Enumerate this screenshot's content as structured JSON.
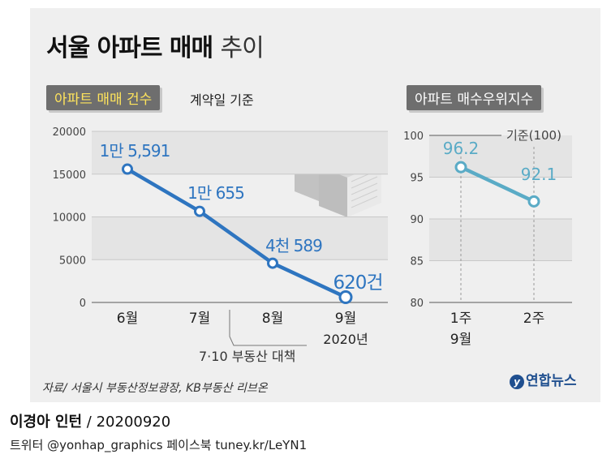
{
  "title": {
    "main": "서울 아파트 매매",
    "sub": "추이"
  },
  "left_tag": {
    "highlight": "아파트 매매 건수",
    "basis": "계약일 기준"
  },
  "right_tag": "아파트 매수우위지수",
  "source": "자료/ 서울시 부동산정보광장, KB부동산 리브온",
  "logo": {
    "mark": "y",
    "text": "연합뉴스"
  },
  "credit": {
    "name": "이경아 인턴",
    "date": " / 20200920"
  },
  "social": "트위터 @yonhap_graphics  페이스북 tuney.kr/LeYN1",
  "colors": {
    "line": "#2e75c0",
    "line2": "#5aabc6",
    "panel": "#efefef",
    "tag": "#6e6e6e"
  },
  "chart_data": [
    {
      "type": "line",
      "categories": [
        "6월",
        "7월",
        "8월",
        "9월"
      ],
      "values": [
        15591,
        10655,
        4589,
        620
      ],
      "value_labels": [
        "1만 5,591",
        "1만 655",
        "4천 589",
        "620건"
      ],
      "yticks": [
        0,
        5000,
        10000,
        15000,
        20000
      ],
      "ylim": [
        0,
        20000
      ],
      "year_label": "2020년",
      "annotation": "7·10 부동산 대책"
    },
    {
      "type": "line",
      "categories": [
        "1주",
        "2주"
      ],
      "period_label": "9월",
      "values": [
        96.2,
        92.1
      ],
      "value_labels": [
        "96.2",
        "92.1"
      ],
      "yticks": [
        80,
        85,
        90,
        95,
        100
      ],
      "ylim": [
        80,
        100
      ],
      "reference_label": "기준(100)"
    }
  ]
}
